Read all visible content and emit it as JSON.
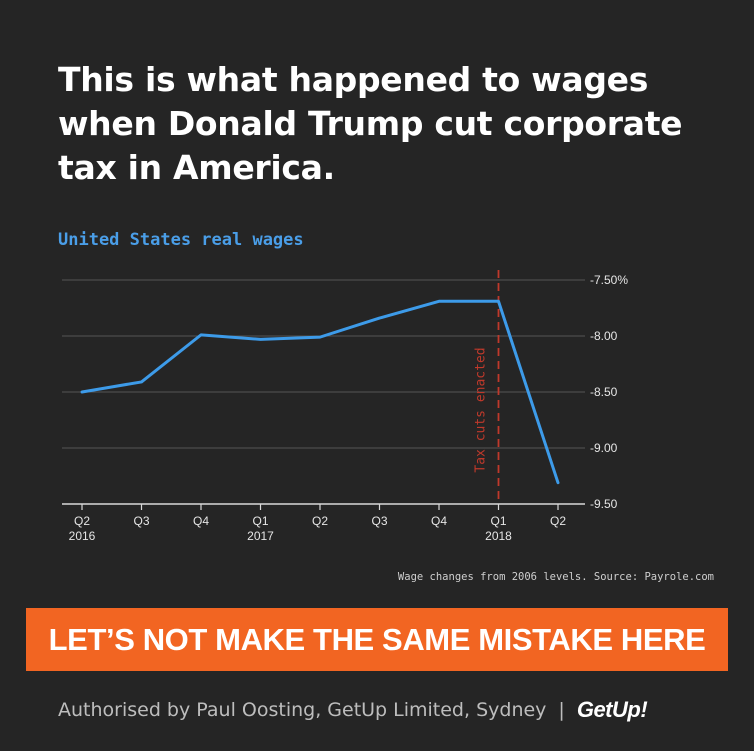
{
  "headline": "This is what happened to wages when Donald Trump cut corporate tax in America.",
  "chart_data": {
    "type": "line",
    "title": "United States real wages",
    "categories": [
      "Q2 2016",
      "Q3 2016",
      "Q4 2016",
      "Q1 2017",
      "Q2 2017",
      "Q3 2017",
      "Q4 2017",
      "Q1 2018",
      "Q2 2018"
    ],
    "tick_labels": [
      [
        "Q2",
        "2016"
      ],
      [
        "Q3",
        ""
      ],
      [
        "Q4",
        ""
      ],
      [
        "Q1",
        "2017"
      ],
      [
        "Q2",
        ""
      ],
      [
        "Q3",
        ""
      ],
      [
        "Q4",
        ""
      ],
      [
        "Q1",
        "2018"
      ],
      [
        "Q2",
        ""
      ]
    ],
    "series": [
      {
        "values": [
          -8.5,
          -8.41,
          -7.99,
          -8.03,
          -8.01,
          -7.84,
          -7.69,
          -7.69,
          -9.31
        ]
      }
    ],
    "ylim": [
      -9.5,
      -7.5
    ],
    "yticks": [
      -7.5,
      -8.0,
      -8.5,
      -9.0,
      -9.5
    ],
    "ytick_labels": [
      "-7.50%",
      "-8.00",
      "-8.50",
      "-9.00",
      "-9.50"
    ],
    "y_axis_side": "right",
    "grid": true,
    "annotation": {
      "x": "Q1 2018",
      "label": "Tax cuts enacted"
    },
    "line_color": "#3d9be9",
    "annotation_color": "#c0392b"
  },
  "source_note": "Wage changes from 2006 levels. Source: Payrole.com",
  "cta": "LET’S NOT MAKE THE SAME MISTAKE HERE",
  "footer": {
    "authorised": "Authorised by Paul Oosting, GetUp Limited, Sydney",
    "separator": "|",
    "logo": "GetUp!"
  },
  "colors": {
    "background": "#252525",
    "cta_background": "#f26522"
  }
}
